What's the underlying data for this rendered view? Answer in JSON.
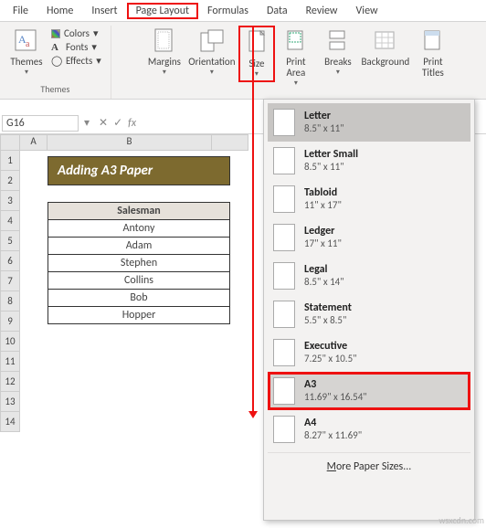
{
  "menubar": {
    "tabs": [
      "File",
      "Home",
      "Insert",
      "Page Layout",
      "Formulas",
      "Data",
      "Review",
      "View"
    ],
    "selected_index": 3
  },
  "ribbon": {
    "themes": {
      "big_label": "Themes",
      "colors": "Colors",
      "fonts": "Fonts",
      "effects": "Effects",
      "group_label": "Themes"
    },
    "page_setup": {
      "margins": "Margins",
      "orientation": "Orientation",
      "size": "Size",
      "print_area": "Print\nArea",
      "breaks": "Breaks",
      "background": "Background",
      "print_titles": "Print\nTitles"
    }
  },
  "cellref": "G16",
  "fx_label": "fx",
  "sheet": {
    "columns": [
      "A",
      "B"
    ],
    "row_count": 14,
    "banner": "Adding A3 Paper",
    "table": {
      "header": "Salesman",
      "rows": [
        "Antony",
        "Adam",
        "Stephen",
        "Collins",
        "Bob",
        "Hopper"
      ]
    }
  },
  "dropdown": {
    "items": [
      {
        "name": "Letter",
        "dim": "8.5\" x 11\""
      },
      {
        "name": "Letter Small",
        "dim": "8.5\" x 11\""
      },
      {
        "name": "Tabloid",
        "dim": "11\" x 17\""
      },
      {
        "name": "Ledger",
        "dim": "17\" x 11\""
      },
      {
        "name": "Legal",
        "dim": "8.5\" x 14\""
      },
      {
        "name": "Statement",
        "dim": "5.5\" x 8.5\""
      },
      {
        "name": "Executive",
        "dim": "7.25\" x 10.5\""
      },
      {
        "name": "A3",
        "dim": "11.69\" x 16.54\""
      },
      {
        "name": "A4",
        "dim": "8.27\" x 11.69\""
      }
    ],
    "selected_index": 0,
    "highlighted_index": 7,
    "footer": "More Paper Sizes..."
  },
  "colors": {
    "highlight": "#e11b1b",
    "ribbon_bg": "#f3f2f1",
    "banner_bg": "#7d6a2f"
  },
  "watermark": "wsxcdn.com"
}
